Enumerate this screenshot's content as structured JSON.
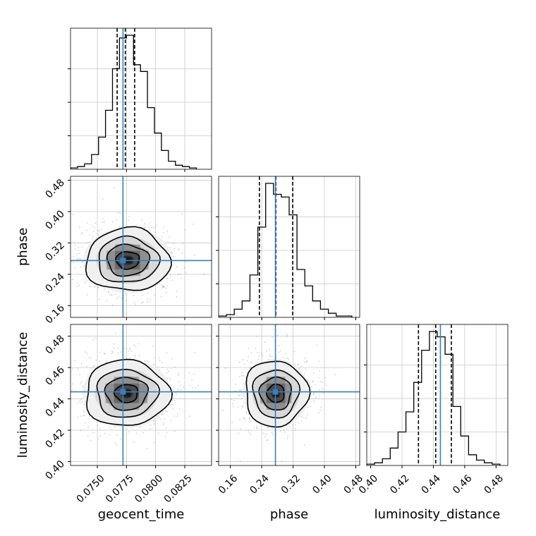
{
  "chart_data": {
    "type": "corner",
    "parameters": [
      {
        "id": "geocent_time",
        "label": "geocent_time",
        "range": [
          0.0727,
          0.0848
        ],
        "ticks": [
          0.075,
          0.0775,
          0.08,
          0.0825
        ],
        "tick_labels": [
          "0.0750",
          "0.0775",
          "0.0800",
          "0.0825"
        ],
        "truth": 0.0772,
        "quantiles": [
          0.0767,
          0.0774,
          0.0782
        ]
      },
      {
        "id": "phase",
        "label": "phase",
        "range": [
          0.13,
          0.49
        ],
        "ticks": [
          0.16,
          0.24,
          0.32,
          0.4,
          0.48
        ],
        "tick_labels": [
          "0.16",
          "0.24",
          "0.32",
          "0.40",
          "0.48"
        ],
        "truth": 0.275,
        "quantiles": [
          0.234,
          0.276,
          0.319
        ]
      },
      {
        "id": "luminosity_distance",
        "label": "luminosity_distance",
        "range": [
          0.3975,
          0.4875
        ],
        "ticks": [
          0.4,
          0.42,
          0.44,
          0.46,
          0.48
        ],
        "tick_labels": [
          "0.40",
          "0.42",
          "0.44",
          "0.46",
          "0.48"
        ],
        "truth": 0.4445,
        "quantiles": [
          0.4305,
          0.4415,
          0.4515
        ]
      }
    ],
    "histograms": [
      {
        "param": "geocent_time",
        "bin_edges": [
          0.0727,
          0.0733,
          0.0739,
          0.0745,
          0.0751,
          0.0757,
          0.0763,
          0.0769,
          0.0775,
          0.0781,
          0.0787,
          0.0793,
          0.0799,
          0.0805,
          0.0811,
          0.0817,
          0.0823,
          0.0829,
          0.0835
        ],
        "counts": [
          1,
          2,
          4,
          11,
          24,
          44,
          75,
          98,
          100,
          78,
          73,
          46,
          27,
          14,
          6,
          3,
          2,
          1
        ]
      },
      {
        "param": "phase",
        "bin_edges": [
          0.13,
          0.15,
          0.17,
          0.19,
          0.21,
          0.23,
          0.25,
          0.27,
          0.29,
          0.31,
          0.33,
          0.35,
          0.37,
          0.39,
          0.41,
          0.43,
          0.45,
          0.47
        ],
        "counts": [
          1,
          2,
          6,
          12,
          31,
          66,
          98,
          90,
          88,
          75,
          35,
          23,
          12,
          6,
          3,
          1,
          1
        ]
      },
      {
        "param": "luminosity_distance",
        "bin_edges": [
          0.3975,
          0.4025,
          0.4075,
          0.4125,
          0.4175,
          0.4225,
          0.4275,
          0.4325,
          0.4375,
          0.4425,
          0.4475,
          0.4525,
          0.4575,
          0.4625,
          0.4675,
          0.4725,
          0.4775,
          0.4825
        ],
        "counts": [
          1,
          2,
          5,
          13,
          25,
          40,
          62,
          86,
          100,
          96,
          83,
          44,
          22,
          8,
          4,
          2,
          1
        ]
      }
    ],
    "pairs": [
      {
        "x": "geocent_time",
        "y": "phase",
        "center": [
          0.0776,
          0.276
        ],
        "sigma": [
          0.0018,
          0.04
        ]
      },
      {
        "x": "geocent_time",
        "y": "luminosity_distance",
        "center": [
          0.0775,
          0.4435
        ],
        "sigma": [
          0.0018,
          0.0105
        ]
      },
      {
        "x": "phase",
        "y": "luminosity_distance",
        "center": [
          0.276,
          0.4435
        ],
        "sigma": [
          0.04,
          0.0105
        ]
      }
    ],
    "grid": true,
    "colors": {
      "truth": "#3a7ebf",
      "hist": "#000000",
      "points": "#9a9a9a",
      "grid": "#c8c8c8"
    }
  }
}
